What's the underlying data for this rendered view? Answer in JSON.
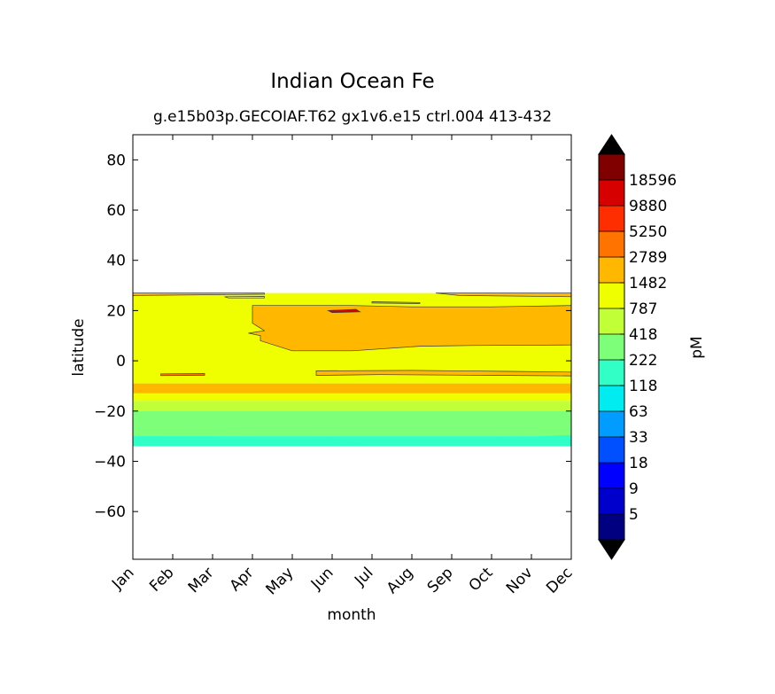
{
  "chart_data": {
    "type": "heatmap",
    "title": "Indian Ocean Fe",
    "subtitle": "g.e15b03p.GECOIAF.T62 gx1v6.e15 ctrl.004 413-432",
    "xlabel": "month",
    "ylabel": "latitude",
    "colorbar_label": "pM",
    "x_categories": [
      "Jan",
      "Feb",
      "Mar",
      "Apr",
      "May",
      "Jun",
      "Jul",
      "Aug",
      "Sep",
      "Oct",
      "Nov",
      "Dec"
    ],
    "xlim": [
      1,
      12
    ],
    "ylim": [
      -79,
      90
    ],
    "y_ticks": [
      80,
      60,
      40,
      20,
      0,
      -20,
      -40,
      -60
    ],
    "colorbar_levels": [
      "5",
      "9",
      "18",
      "33",
      "63",
      "118",
      "222",
      "418",
      "787",
      "1482",
      "2789",
      "5250",
      "9880",
      "18596"
    ],
    "colorbar_colors": [
      "#000080",
      "#0000cd",
      "#0000ff",
      "#0050ff",
      "#009cff",
      "#00ecf0",
      "#31ffc5",
      "#7dff7a",
      "#c1ff36",
      "#f0ff00",
      "#ffb700",
      "#ff7400",
      "#ff2e00",
      "#d60000",
      "#800000"
    ],
    "colorbar_extend": "both",
    "colorbar_extend_color": "#000000",
    "data_extent_lat": [
      -34,
      27
    ],
    "bands": [
      {
        "from_lat": -34,
        "to_lat": -30,
        "value_range": "118-222"
      },
      {
        "from_lat": -30,
        "to_lat": -20,
        "value_range": "222-418"
      },
      {
        "from_lat": -20,
        "to_lat": -16,
        "value_range": "418-787"
      },
      {
        "from_lat": -16,
        "to_lat": -13,
        "value_range": "787-1482"
      },
      {
        "from_lat": -13,
        "to_lat": -9,
        "value_range": "1482-2789"
      },
      {
        "from_lat": -9,
        "to_lat": 27,
        "value_range": "787-1482"
      },
      {
        "region": "Apr-Dec, 7 to 22",
        "value_range": "1482-2789"
      }
    ]
  }
}
